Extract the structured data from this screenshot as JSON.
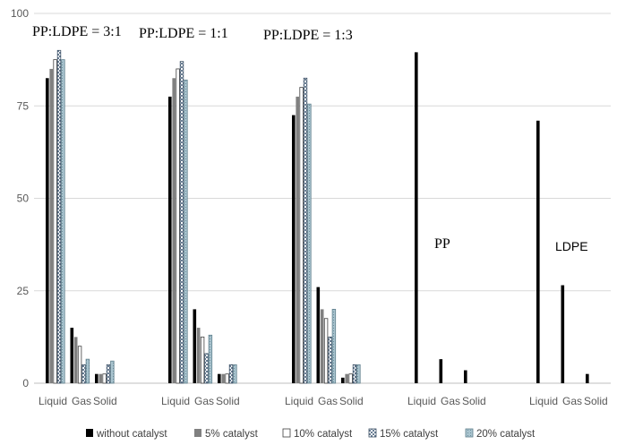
{
  "chart_data": {
    "type": "bar",
    "title": "",
    "xlabel": "",
    "ylabel": "",
    "ylim": [
      0,
      100
    ],
    "yticks": [
      "0",
      "25",
      "50",
      "75",
      "100"
    ],
    "grid": true,
    "legend_position": "bottom",
    "groups": [
      {
        "annotation": "PP:LDPE = 3:1",
        "categories": [
          "Liquid",
          "Gas",
          "Solid"
        ]
      },
      {
        "annotation": "PP:LDPE = 1:1",
        "categories": [
          "Liquid",
          "Gas",
          "Solid"
        ]
      },
      {
        "annotation": "PP:LDPE = 1:3",
        "categories": [
          "Liquid",
          "Gas",
          "Solid"
        ]
      },
      {
        "annotation": "PP",
        "categories": [
          "Liquid",
          "Gas",
          "Solid"
        ]
      },
      {
        "annotation": "LDPE",
        "categories": [
          "Liquid",
          "Gas",
          "Solid"
        ]
      }
    ],
    "series": [
      {
        "name": "without catalyst",
        "color": "#000000",
        "values": [
          [
            82.5,
            15,
            2.5
          ],
          [
            77.5,
            20,
            2.5
          ],
          [
            72.5,
            26,
            1.5
          ],
          [
            89.5,
            6.5,
            3.5
          ],
          [
            71,
            26.5,
            2.5
          ]
        ]
      },
      {
        "name": "5% catalyst",
        "color": "#808080",
        "values": [
          [
            85,
            12.5,
            2.5
          ],
          [
            82.5,
            15,
            2.5
          ],
          [
            77.5,
            20,
            2.5
          ],
          [
            null,
            null,
            null
          ],
          [
            null,
            null,
            null
          ]
        ]
      },
      {
        "name": "10% catalyst",
        "color": "#ffffff",
        "values": [
          [
            87.5,
            10,
            2.5
          ],
          [
            85,
            12.5,
            2.5
          ],
          [
            80,
            17.5,
            2.5
          ],
          [
            null,
            null,
            null
          ],
          [
            null,
            null,
            null
          ]
        ]
      },
      {
        "name": "15% catalyst",
        "color": "#c8d8e8",
        "values": [
          [
            90,
            5,
            5
          ],
          [
            87,
            8,
            5
          ],
          [
            82.5,
            12.5,
            5
          ],
          [
            null,
            null,
            null
          ],
          [
            null,
            null,
            null
          ]
        ]
      },
      {
        "name": "20% catalyst",
        "color": "#a9c4cf",
        "values": [
          [
            87.5,
            6.5,
            6
          ],
          [
            82,
            13,
            5
          ],
          [
            75.5,
            20,
            5
          ],
          [
            null,
            null,
            null
          ],
          [
            null,
            null,
            null
          ]
        ]
      }
    ]
  }
}
